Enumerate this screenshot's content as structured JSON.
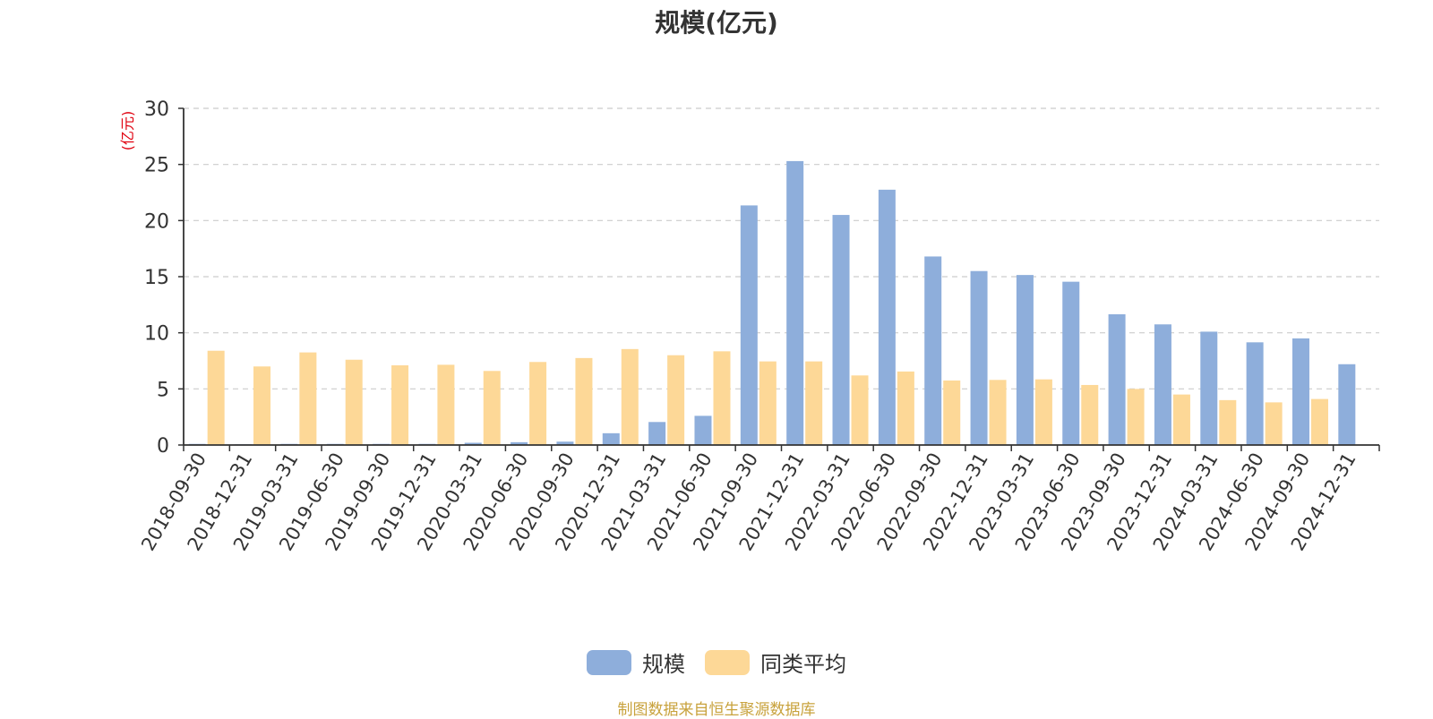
{
  "colors": {
    "series_scale": "#8eaedb",
    "series_average": "#fdd897",
    "axis": "#333333",
    "grid": "#cccccc",
    "unit_label": "#e0000f",
    "title": "#333333",
    "source": "#c8a23c"
  },
  "legend": {
    "scale_icon": "rounded-rect-swatch",
    "average_icon": "rounded-rect-swatch"
  },
  "source_note": "制图数据来自恒生聚源数据库",
  "chart_data": {
    "type": "bar",
    "title": "规模(亿元)",
    "ylabel": "(亿元)",
    "xlabel": "",
    "ylim": [
      0,
      30
    ],
    "yticks": [
      0,
      5,
      10,
      15,
      20,
      25,
      30
    ],
    "grid": true,
    "legend_position": "bottom-center",
    "categories": [
      "2018-09-30",
      "2018-12-31",
      "2019-03-31",
      "2019-06-30",
      "2019-09-30",
      "2019-12-31",
      "2020-03-31",
      "2020-06-30",
      "2020-09-30",
      "2020-12-31",
      "2021-03-31",
      "2021-06-30",
      "2021-09-30",
      "2021-12-31",
      "2022-03-31",
      "2022-06-30",
      "2022-09-30",
      "2022-12-31",
      "2023-03-31",
      "2023-06-30",
      "2023-09-30",
      "2023-12-31",
      "2024-03-31",
      "2024-06-30",
      "2024-09-30",
      "2024-12-31"
    ],
    "series": [
      {
        "name": "规模",
        "values": [
          0.1,
          0.05,
          0.1,
          0.1,
          0.1,
          0.1,
          0.2,
          0.25,
          0.3,
          1.05,
          2.05,
          2.6,
          21.35,
          25.3,
          20.5,
          22.75,
          16.8,
          15.5,
          15.15,
          14.55,
          11.65,
          10.75,
          10.1,
          9.15,
          9.5,
          7.2
        ]
      },
      {
        "name": "同类平均",
        "values": [
          8.4,
          7.0,
          8.25,
          7.6,
          7.1,
          7.15,
          6.6,
          7.4,
          7.75,
          8.55,
          8.0,
          8.35,
          7.45,
          7.45,
          6.2,
          6.55,
          5.75,
          5.8,
          5.85,
          5.35,
          5.0,
          4.5,
          4.0,
          3.8,
          4.1,
          null
        ]
      }
    ]
  }
}
